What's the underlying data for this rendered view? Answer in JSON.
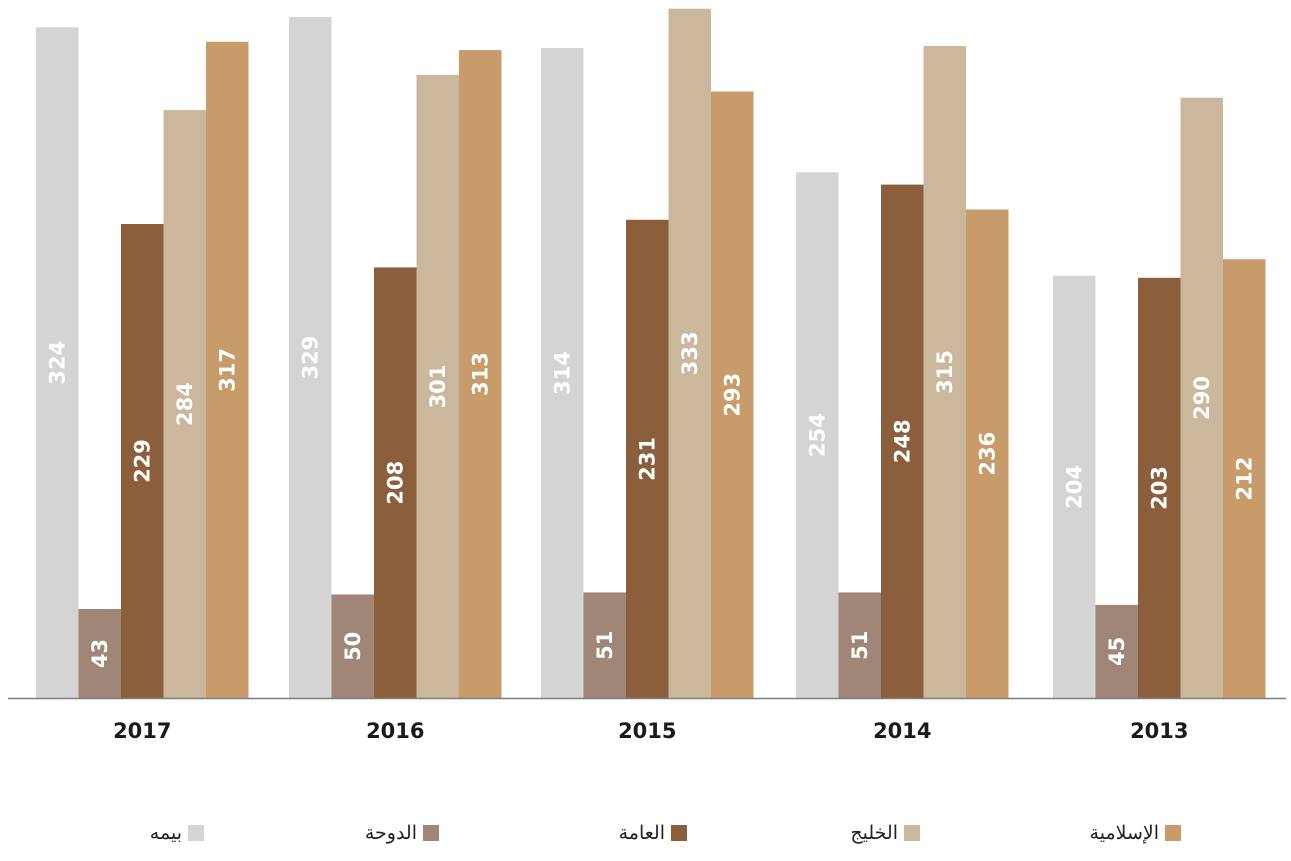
{
  "chart_data": {
    "type": "bar",
    "categories": [
      "2017",
      "2016",
      "2015",
      "2014",
      "2013"
    ],
    "series": [
      {
        "name": "بيمه",
        "color": "#d4d4d4",
        "label_color": "#ececec",
        "values": [
          324,
          329,
          314,
          254,
          204
        ]
      },
      {
        "name": "الدوحة",
        "color": "#a08676",
        "label_color": "#ffffff",
        "values": [
          43,
          50,
          51,
          51,
          45
        ]
      },
      {
        "name": "العامة",
        "color": "#8b5e3c",
        "label_color": "#ffffff",
        "values": [
          229,
          208,
          231,
          248,
          203
        ]
      },
      {
        "name": "الخليج",
        "color": "#cbb79c",
        "label_color": "#ffffff",
        "values": [
          284,
          301,
          333,
          315,
          290
        ]
      },
      {
        "name": "الإسلامية",
        "color": "#c89b6a",
        "label_color": "#ffffff",
        "values": [
          317,
          313,
          293,
          236,
          212
        ]
      }
    ],
    "title": "",
    "xlabel": "",
    "ylabel": "",
    "ylim": [
      0,
      340
    ],
    "grid": false,
    "legend": "bottom",
    "legend_order": [
      "الإسلامية",
      "الخليج",
      "العامة",
      "الدوحة",
      "بيمه"
    ]
  }
}
